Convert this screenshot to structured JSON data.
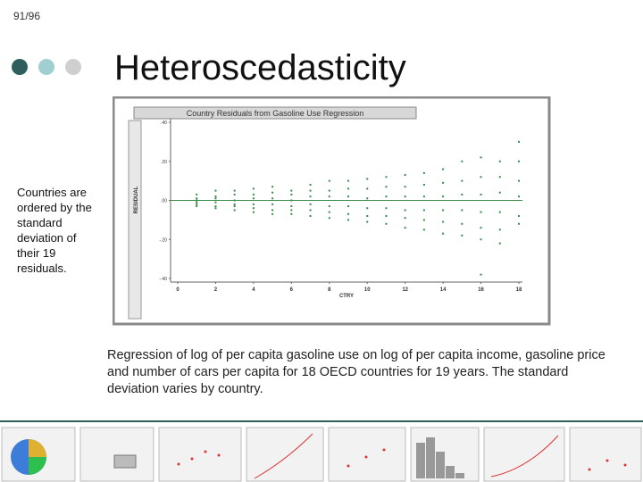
{
  "header": {
    "page": "91/96",
    "title": "Heteroscedasticity"
  },
  "side_note": "Countries are ordered by the standard deviation of their 19 residuals.",
  "caption": "Regression of log of per capita gasoline use on log of per capita income, gasoline price and number of cars per capita for 18 OECD countries for 19 years. The standard deviation varies by country.",
  "chart_data": {
    "type": "scatter",
    "title": "Country Residuals from Gasoline Use Regression",
    "x_label": "CTRY",
    "y_label": "RESIDUAL",
    "color": "#3a8a4a",
    "x": [
      1,
      1,
      1,
      1,
      1,
      1,
      2,
      2,
      2,
      2,
      2,
      2,
      3,
      3,
      3,
      3,
      3,
      3,
      4,
      4,
      4,
      4,
      4,
      4,
      5,
      5,
      5,
      5,
      5,
      5,
      6,
      6,
      6,
      6,
      6,
      6,
      7,
      7,
      7,
      7,
      7,
      7,
      8,
      8,
      8,
      8,
      8,
      8,
      9,
      9,
      9,
      9,
      9,
      9,
      10,
      10,
      10,
      10,
      10,
      10,
      11,
      11,
      11,
      11,
      11,
      11,
      12,
      12,
      12,
      12,
      12,
      12,
      13,
      13,
      13,
      13,
      13,
      13,
      14,
      14,
      14,
      14,
      14,
      14,
      15,
      15,
      15,
      15,
      15,
      15,
      16,
      16,
      16,
      16,
      16,
      16,
      16,
      17,
      17,
      17,
      17,
      17,
      17,
      18,
      18,
      18,
      18,
      18,
      18
    ],
    "values": [
      0.03,
      0.01,
      0,
      -0.01,
      -0.02,
      -0.03,
      0.05,
      0.02,
      0.01,
      -0.01,
      -0.03,
      -0.04,
      0.05,
      0.03,
      0,
      -0.02,
      -0.03,
      -0.05,
      0.06,
      0.03,
      0.01,
      -0.02,
      -0.04,
      -0.06,
      0.07,
      0.04,
      0.01,
      -0.02,
      -0.05,
      -0.07,
      0.05,
      0.03,
      0,
      -0.03,
      -0.05,
      -0.07,
      0.08,
      0.05,
      0.02,
      -0.02,
      -0.05,
      -0.08,
      0.1,
      0.05,
      0.02,
      -0.03,
      -0.06,
      -0.09,
      0.1,
      0.06,
      0.02,
      -0.03,
      -0.07,
      -0.1,
      0.11,
      0.06,
      0.01,
      -0.04,
      -0.08,
      -0.11,
      0.12,
      0.07,
      0.02,
      -0.04,
      -0.08,
      -0.12,
      0.13,
      0.07,
      0.02,
      -0.05,
      -0.09,
      -0.14,
      0.14,
      0.08,
      0.02,
      -0.05,
      -0.1,
      -0.15,
      0.16,
      0.09,
      0.02,
      -0.05,
      -0.11,
      -0.17,
      0.2,
      0.1,
      0.03,
      -0.05,
      -0.12,
      -0.18,
      0.22,
      0.12,
      0.03,
      -0.06,
      -0.14,
      -0.2,
      -0.38,
      0.2,
      0.12,
      0.04,
      -0.06,
      -0.15,
      -0.22,
      0.3,
      0.2,
      0.1,
      0.02,
      -0.08,
      -0.12
    ],
    "xlim": [
      0,
      18
    ],
    "xticks": [
      0,
      2,
      4,
      6,
      8,
      10,
      12,
      14,
      16,
      18
    ],
    "ylim": [
      -0.4,
      0.4
    ],
    "yticks": [
      {
        "value": 0.4,
        "label": ".40"
      },
      {
        "value": 0.2,
        "label": ".20"
      },
      {
        "value": 0,
        "label": ".00"
      },
      {
        "value": -0.2,
        "label": "-.20"
      },
      {
        "value": -0.4,
        "label": "-.40"
      }
    ]
  }
}
